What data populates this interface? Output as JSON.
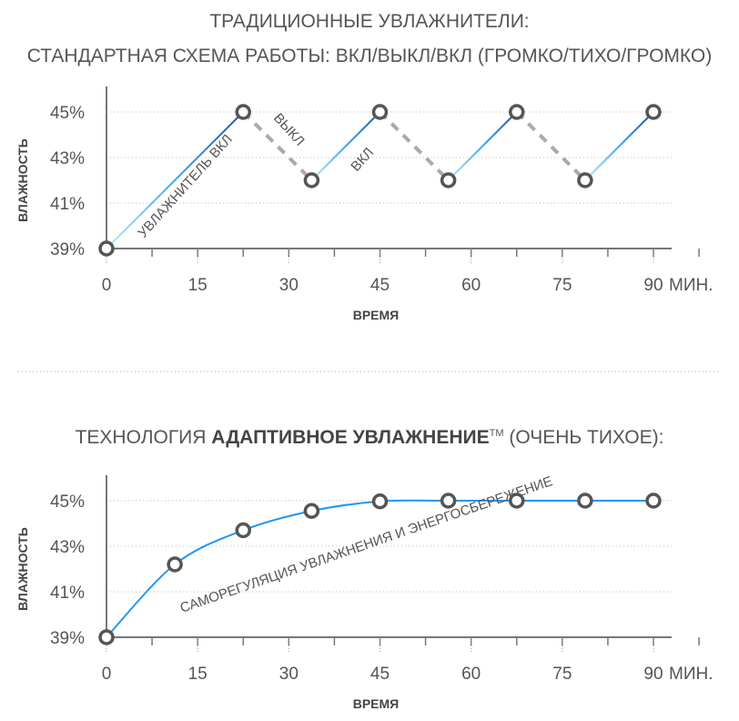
{
  "chart_data": [
    {
      "type": "line",
      "title_lines": [
        "ТРАДИЦИОННЫЕ УВЛАЖНИТЕЛИ:",
        "СТАНДАРТНАЯ СХЕМА РАБОТЫ: ВКЛ/ВЫКЛ/ВКЛ (ГРОМКО/ТИХО/ГРОМКО)"
      ],
      "xlabel": "ВРЕМЯ",
      "ylabel": "ВЛАЖНОСТЬ",
      "x_unit": "МИН.",
      "xlim": [
        0,
        90
      ],
      "ylim": [
        39,
        45
      ],
      "x_ticks": [
        "0",
        "15",
        "30",
        "45",
        "60",
        "75",
        "90"
      ],
      "y_ticks": [
        "39%",
        "41%",
        "43%",
        "45%"
      ],
      "series": [
        {
          "name": "humidity",
          "x": [
            0,
            22.5,
            33.75,
            45,
            56.25,
            67.5,
            78.75,
            90
          ],
          "y": [
            39,
            45,
            42,
            45,
            42,
            45,
            42,
            45
          ]
        }
      ],
      "annotations": [
        "УВЛАЖНИТЕЛЬ ВКЛ",
        "ВЫКЛ",
        "ВКЛ"
      ],
      "colors": {
        "on": "#1e88e5",
        "off": "#aaaaaa",
        "marker": "#555555"
      }
    },
    {
      "type": "line",
      "title_pre": "ТЕХНОЛОГИЯ ",
      "title_bold": "АДАПТИВНОЕ УВЛАЖНЕНИЕ",
      "title_tm": "TM",
      "title_post": " (ОЧЕНЬ ТИХОЕ):",
      "xlabel": "ВРЕМЯ",
      "ylabel": "ВЛАЖНОСТЬ",
      "x_unit": "МИН.",
      "xlim": [
        0,
        90
      ],
      "ylim": [
        39,
        45
      ],
      "x_ticks": [
        "0",
        "15",
        "30",
        "45",
        "60",
        "75",
        "90"
      ],
      "y_ticks": [
        "39%",
        "41%",
        "43%",
        "45%"
      ],
      "series": [
        {
          "name": "humidity",
          "x": [
            0,
            11.25,
            22.5,
            33.75,
            45,
            56.25,
            67.5,
            78.75,
            90
          ],
          "y": [
            39,
            42.2,
            43.7,
            44.55,
            44.97,
            45,
            45,
            45,
            45
          ]
        }
      ],
      "annotations": [
        "САМОРЕГУЛЯЦИЯ УВЛАЖНЕНИЯ И ЭНЕРГОСБЕРЕЖЕНИЕ"
      ],
      "colors": {
        "line": "#2196f3",
        "marker": "#555555"
      }
    }
  ]
}
